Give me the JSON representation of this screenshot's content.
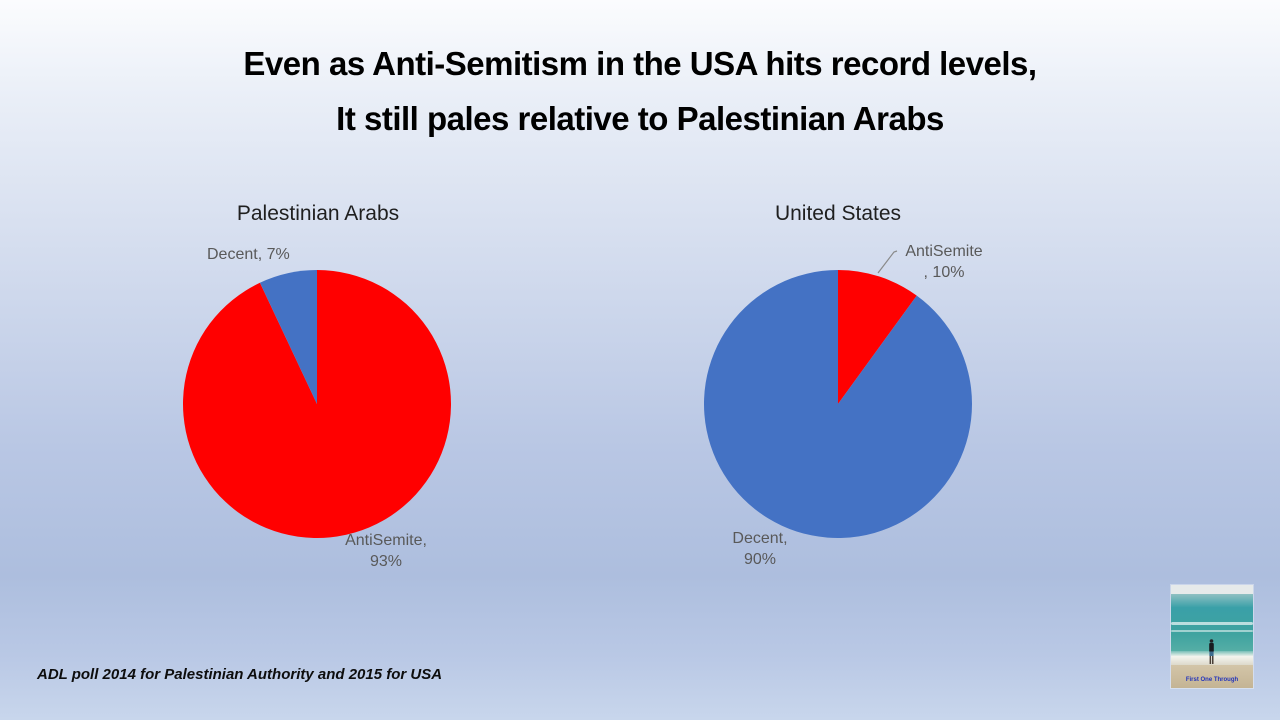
{
  "slide": {
    "title_line1": "Even as Anti-Semitism in the USA hits record levels,",
    "title_line2": "It still pales relative to Palestinian Arabs",
    "footnote": "ADL poll 2014 for Palestinian Authority and 2015 for USA"
  },
  "chart_data": [
    {
      "type": "pie",
      "title": "Palestinian Arabs",
      "categories": [
        "AntiSemite",
        "Decent"
      ],
      "values": [
        93,
        7
      ],
      "colors": [
        "#FF0000",
        "#4472C4"
      ],
      "start_angle_deg": 0,
      "direction": "clockwise",
      "legend": "none",
      "data_labels": {
        "antisemite": [
          "AntiSemite,",
          "93%"
        ],
        "decent": [
          "Decent, 7%"
        ]
      }
    },
    {
      "type": "pie",
      "title": "United States",
      "categories": [
        "AntiSemite",
        "Decent"
      ],
      "values": [
        10,
        90
      ],
      "colors": [
        "#FF0000",
        "#4472C4"
      ],
      "start_angle_deg": 0,
      "direction": "clockwise",
      "legend": "none",
      "data_labels": {
        "antisemite": [
          "AntiSemite",
          ", 10%"
        ],
        "decent": [
          "Decent,",
          "90%"
        ]
      }
    }
  ],
  "colors": {
    "antisemite_red": "#FF0000",
    "decent_blue": "#4472C4",
    "label_gray": "#595959"
  },
  "watermark": {
    "caption": "First One Through"
  }
}
